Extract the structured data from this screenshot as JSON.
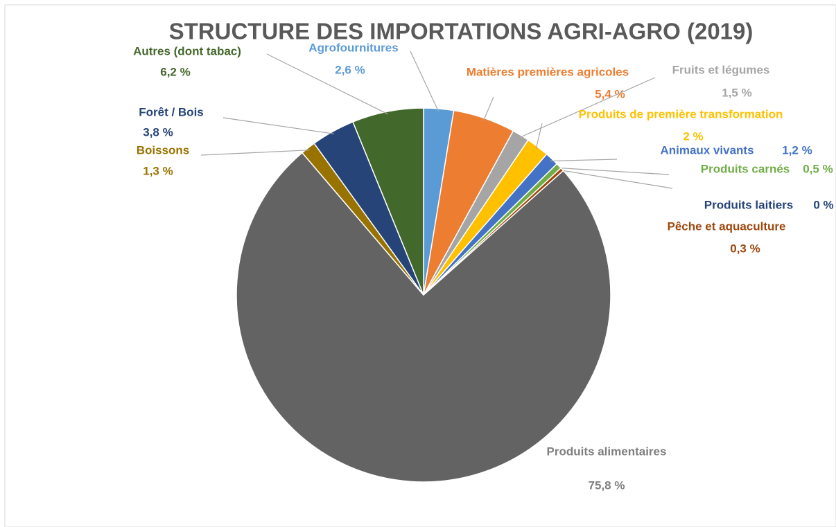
{
  "chart_data": {
    "type": "pie",
    "title": "STRUCTURE DES IMPORTATIONS AGRI-AGRO (2019)",
    "categories": [
      "Agrofournitures",
      "Matières premières agricoles",
      "Fruits et légumes",
      "Produits de première transformation",
      "Animaux vivants",
      "Produits carnés",
      "Produits laitiers",
      "Pêche et aquaculture",
      "Produits alimentaires",
      "Boissons",
      "Forêt / Bois",
      "Autres (dont tabac)"
    ],
    "values": [
      2.6,
      5.4,
      1.5,
      2,
      1.2,
      0.5,
      0,
      0.3,
      75.8,
      1.3,
      3.8,
      6.2
    ],
    "value_labels": [
      "2,6 %",
      "5,4 %",
      "1,5 %",
      "2 %",
      "1,2 %",
      "0,5 %",
      "0 %",
      "0,3 %",
      "75,8 %",
      "1,3 %",
      "3,8 %",
      "6,2 %"
    ],
    "colors": [
      "#5b9bd5",
      "#ed7d31",
      "#a5a5a5",
      "#ffc000",
      "#4472c4",
      "#70ad47",
      "#264478",
      "#9e480e",
      "#636363",
      "#997300",
      "#264478",
      "#43682b"
    ]
  }
}
